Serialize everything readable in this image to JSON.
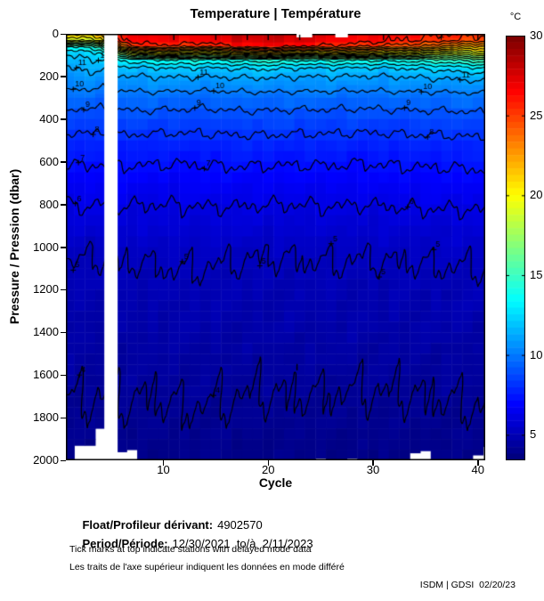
{
  "title": "Temperature | Température",
  "axes": {
    "y_label": "Pressure / Pression (dbar)",
    "x_label": "Cycle",
    "y_ticks": [
      0,
      200,
      400,
      600,
      800,
      1000,
      1200,
      1400,
      1600,
      1800,
      2000
    ],
    "x_ticks": [
      10,
      20,
      30,
      40
    ]
  },
  "colorbar": {
    "unit_label": "°C",
    "ticks": [
      30,
      25,
      20,
      15,
      10,
      5
    ],
    "range": [
      3.4,
      30
    ]
  },
  "chart_data": {
    "type": "heatmap",
    "title": "Temperature | Température",
    "xlabel": "Cycle",
    "ylabel": "Pressure / Pression (dbar)",
    "x_range": [
      0.5,
      41.5
    ],
    "y_range": [
      0,
      2000
    ],
    "color_range": [
      3.4,
      30
    ],
    "colormap": "jet",
    "contour_level_min": 4,
    "contour_level_max": 26,
    "contour_interval": 1,
    "depth_nodes": [
      0,
      30,
      60,
      90,
      120,
      160,
      200,
      250,
      300,
      400,
      500,
      600,
      700,
      800,
      1000,
      1200,
      1400,
      1700,
      2000
    ],
    "key_cycles": [
      1,
      3,
      4,
      6,
      8,
      11,
      14,
      17,
      20,
      23,
      26,
      29,
      32,
      35,
      37,
      39,
      41
    ],
    "key_profiles": [
      [
        21.0,
        19.0,
        14.0,
        12.4,
        11.8,
        11.1,
        10.6,
        10.1,
        9.5,
        8.5,
        7.7,
        7.1,
        6.5,
        6.0,
        5.15,
        4.75,
        4.45,
        4.02,
        3.6
      ],
      [
        21.5,
        19.5,
        14.5,
        12.6,
        11.9,
        11.15,
        10.65,
        10.1,
        9.5,
        8.55,
        7.75,
        7.1,
        6.55,
        6.05,
        5.1,
        4.7,
        4.4,
        4.0,
        3.62
      ],
      [
        22.0,
        20.0,
        15.0,
        12.8,
        12.0,
        11.2,
        10.6,
        10.1,
        9.45,
        8.5,
        7.7,
        7.05,
        6.5,
        6.0,
        5.05,
        4.7,
        4.4,
        3.98,
        3.6
      ],
      [
        26.5,
        26.0,
        23.0,
        17.0,
        13.2,
        11.7,
        10.9,
        10.2,
        9.55,
        8.6,
        7.8,
        7.1,
        6.55,
        6.05,
        5.2,
        4.75,
        4.45,
        4.05,
        3.63
      ],
      [
        27.0,
        26.6,
        25.5,
        20.0,
        14.0,
        11.9,
        11.0,
        10.3,
        9.6,
        8.6,
        7.75,
        7.1,
        6.5,
        6.0,
        5.15,
        4.7,
        4.42,
        4.0,
        3.61
      ],
      [
        27.5,
        27.1,
        25.6,
        20.5,
        14.2,
        12.0,
        11.05,
        10.3,
        9.55,
        8.55,
        7.7,
        7.05,
        6.5,
        6.0,
        5.25,
        4.8,
        4.45,
        4.05,
        3.64
      ],
      [
        27.0,
        26.6,
        24.8,
        19.5,
        14.0,
        11.9,
        11.0,
        10.25,
        9.5,
        8.5,
        7.75,
        7.1,
        6.55,
        6.05,
        5.2,
        4.78,
        4.44,
        4.06,
        3.62
      ],
      [
        28.0,
        27.6,
        26.2,
        21.0,
        14.5,
        12.1,
        11.1,
        10.3,
        9.6,
        8.6,
        7.8,
        7.15,
        6.55,
        6.05,
        5.15,
        4.72,
        4.42,
        4.0,
        3.6
      ],
      [
        28.5,
        28.1,
        26.8,
        21.5,
        14.8,
        12.2,
        11.1,
        10.35,
        9.6,
        8.6,
        7.8,
        7.1,
        6.5,
        6.0,
        5.1,
        4.7,
        4.4,
        3.98,
        3.59
      ],
      [
        28.0,
        27.6,
        25.8,
        20.5,
        14.3,
        12.0,
        11.0,
        10.3,
        9.55,
        8.55,
        7.75,
        7.1,
        6.5,
        6.0,
        5.12,
        4.72,
        4.42,
        4.0,
        3.6
      ],
      [
        27.5,
        27.1,
        25.7,
        21.0,
        14.5,
        12.0,
        11.0,
        10.3,
        9.55,
        8.55,
        7.75,
        7.1,
        6.55,
        6.05,
        5.15,
        4.73,
        4.43,
        3.96,
        3.58
      ],
      [
        27.0,
        26.6,
        25.0,
        20.5,
        14.2,
        11.9,
        10.95,
        10.25,
        9.5,
        8.5,
        7.7,
        7.05,
        6.5,
        6.0,
        5.12,
        4.7,
        4.4,
        3.95,
        3.58
      ],
      [
        26.5,
        26.1,
        24.5,
        20.0,
        14.5,
        12.0,
        11.0,
        10.3,
        9.55,
        8.55,
        7.75,
        7.1,
        6.55,
        6.05,
        5.15,
        4.72,
        4.42,
        3.98,
        3.6
      ],
      [
        26.5,
        25.9,
        24.0,
        19.5,
        14.8,
        12.2,
        11.1,
        10.3,
        9.6,
        8.6,
        7.8,
        7.15,
        6.6,
        6.1,
        5.18,
        4.75,
        4.44,
        4.0,
        3.61
      ],
      [
        26.0,
        25.2,
        22.5,
        18.5,
        15.0,
        12.4,
        11.2,
        10.35,
        9.6,
        8.6,
        7.8,
        7.15,
        6.6,
        6.1,
        5.2,
        4.76,
        4.45,
        4.02,
        3.62
      ],
      [
        25.5,
        24.8,
        22.0,
        19.0,
        15.5,
        12.8,
        11.3,
        10.4,
        9.65,
        8.65,
        7.85,
        7.2,
        6.6,
        6.1,
        5.2,
        4.76,
        4.45,
        4.05,
        3.63
      ],
      [
        25.0,
        24.2,
        21.5,
        19.5,
        16.0,
        13.0,
        11.5,
        10.45,
        9.7,
        8.7,
        7.9,
        7.25,
        6.65,
        6.15,
        5.25,
        4.8,
        4.48,
        4.08,
        3.65
      ]
    ],
    "missing_cycles": [
      5
    ],
    "max_depth_by_cycle": {
      "2": 1930,
      "3": 1930,
      "4": 1850,
      "6": 1960,
      "7": 1950,
      "25": 1990,
      "28": 1990,
      "34": 1965,
      "35": 1955,
      "40": 1975,
      "41": 1935
    },
    "surface_gaps": [
      [
        22.7,
        24.2
      ],
      [
        26.4,
        27.6
      ]
    ],
    "delayed_mode_cycles": [
      11,
      15,
      18,
      20,
      23,
      31,
      40
    ],
    "contour_labels": [
      [
        12,
        3.8
      ],
      [
        11,
        1.7
      ],
      [
        10,
        1.4
      ],
      [
        9,
        2.4
      ],
      [
        8,
        3.3
      ],
      [
        7,
        1.9
      ],
      [
        6,
        1.6
      ],
      [
        5,
        1.4
      ],
      [
        4,
        2.0
      ],
      [
        18,
        3.9
      ],
      [
        11,
        13.3
      ],
      [
        10,
        14.8
      ],
      [
        9,
        13.0
      ],
      [
        7,
        13.9
      ],
      [
        8,
        35.2
      ],
      [
        9,
        33.0
      ],
      [
        10,
        34.6
      ],
      [
        11,
        38.3
      ],
      [
        6,
        33.3
      ],
      [
        5,
        11.8
      ],
      [
        5,
        19.2
      ],
      [
        5,
        26.0
      ],
      [
        5,
        30.6
      ],
      [
        5,
        35.8
      ],
      [
        4,
        14.8
      ],
      [
        26,
        36.5
      ]
    ]
  },
  "annotations": {
    "float_label": "Float/Profileur dérivant:",
    "float_value": "4902570",
    "period_label": "Period/Période:",
    "period_value": "12/30/2021  to/à  2/11/2023",
    "note_en": "Tick marks at top indicate stations with delayed mode data",
    "note_fr": "Les traits de l'axe supérieur indiquent les données en mode différé",
    "credit": "ISDM | GDSI  02/20/23"
  }
}
